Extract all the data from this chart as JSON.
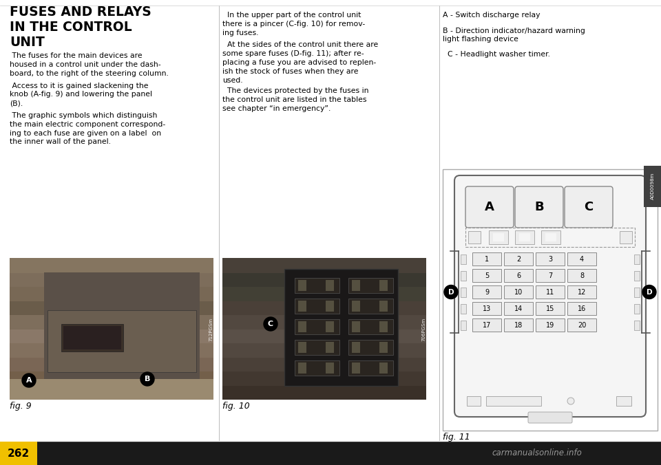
{
  "bg_color": "#ffffff",
  "page_bg": "#ffffff",
  "white": "#ffffff",
  "black": "#000000",
  "light_gray": "#e8e8e8",
  "mid_gray": "#aaaaaa",
  "dark_gray": "#555555",
  "title_line1": "FUSES AND RELAYS",
  "title_line2": "IN THE CONTROL",
  "title_line3": "UNIT",
  "title_font_size": 14,
  "body_col1": [
    " The fuses for the main devices are\nhoused in a control unit under the dash-\nboard, to the right of the steering column.",
    " Access to it is gained slackening the\nknob (A-fig. 9) and lowering the panel\n(B).",
    " The graphic symbols which distinguish\nthe main electric component correspond-\ning to each fuse are given on a label  on\nthe inner wall of the panel."
  ],
  "body_col2": [
    "  In the upper part of the control unit\nthere is a pincer (C-fig. 10) for remov-\ning fuses.",
    "  At the sides of the control unit there are\nsome spare fuses (D-fig. 11); after re-\nplacing a fuse you are advised to replen-\nish the stock of fuses when they are\nused.",
    "  The devices protected by the fuses in\nthe control unit are listed in the tables\nsee chapter “in emergency”."
  ],
  "body_col3": [
    "A - Switch discharge relay",
    "B - Direction indicator/hazard warning\nlight flashing device",
    "  C - Headlight washer timer."
  ],
  "fig9_label": "fig. 9",
  "fig10_label": "fig. 10",
  "fig11_label": "fig. 11",
  "page_number": "262",
  "watermark": "carmanualsonline.info",
  "fuse_rows": [
    [
      1,
      2,
      3,
      4
    ],
    [
      5,
      6,
      7,
      8
    ],
    [
      9,
      10,
      11,
      12
    ],
    [
      13,
      14,
      15,
      16
    ],
    [
      17,
      18,
      19,
      20
    ]
  ],
  "relay_labels": [
    "A",
    "B",
    "C"
  ],
  "code_712": "712PGSm",
  "code_706": "706PGSm",
  "code_a0d": "A0D0098m",
  "col_dividers": [
    318,
    638
  ],
  "bottom_bar_color": "#1a1a1a",
  "page_box_color": "#2a2a2a"
}
